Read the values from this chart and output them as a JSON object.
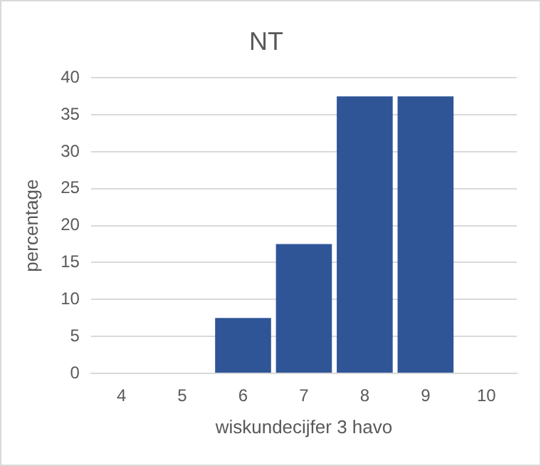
{
  "chart_data": {
    "type": "bar",
    "title": "NT",
    "xlabel": "wiskundecijfer 3 havo",
    "ylabel": "percentage",
    "categories": [
      "4",
      "5",
      "6",
      "7",
      "8",
      "9",
      "10"
    ],
    "values": [
      0,
      0,
      7.5,
      17.5,
      37.5,
      37.5,
      0
    ],
    "color": "#2f5597",
    "ylim": [
      0,
      40
    ],
    "yticks": [
      0,
      5,
      10,
      15,
      20,
      25,
      30,
      35,
      40
    ],
    "grid": "y"
  }
}
